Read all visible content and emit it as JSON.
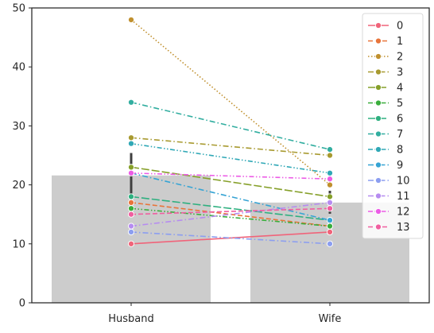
{
  "chart_data": {
    "type": "line",
    "title": "",
    "xlabel": "",
    "ylabel": "",
    "categories": [
      "Husband",
      "Wife"
    ],
    "ylim": [
      0,
      50
    ],
    "yticks": [
      0,
      10,
      20,
      30,
      40,
      50
    ],
    "grid": false,
    "legend_position": "top-right",
    "bars": {
      "color": "#cccccc",
      "errorbar_color": "#3f3f3f",
      "values": [
        21.6,
        17.0
      ],
      "ci": [
        [
          18.1,
          25.4
        ],
        [
          15.1,
          19.0
        ]
      ]
    },
    "series": [
      {
        "name": "0",
        "values": [
          10,
          12
        ],
        "color": "#f0647a",
        "dash": "solid"
      },
      {
        "name": "1",
        "values": [
          17,
          13
        ],
        "color": "#e8743a",
        "dash": "dash"
      },
      {
        "name": "2",
        "values": [
          48,
          20
        ],
        "color": "#c0902e",
        "dash": "dot"
      },
      {
        "name": "3",
        "values": [
          28,
          25
        ],
        "color": "#a89a30",
        "dash": "dashdot"
      },
      {
        "name": "4",
        "values": [
          23,
          18
        ],
        "color": "#86a02a",
        "dash": "longdash"
      },
      {
        "name": "5",
        "values": [
          16,
          13
        ],
        "color": "#3aae3c",
        "dash": "dashdotdot"
      },
      {
        "name": "6",
        "values": [
          18,
          14
        ],
        "color": "#2fb080",
        "dash": "longdash"
      },
      {
        "name": "7",
        "values": [
          34,
          26
        ],
        "color": "#32aea0",
        "dash": "dashdot"
      },
      {
        "name": "8",
        "values": [
          27,
          22
        ],
        "color": "#30a8b6",
        "dash": "dashdotdot"
      },
      {
        "name": "9",
        "values": [
          22,
          14
        ],
        "color": "#36a4d4",
        "dash": "dashdot"
      },
      {
        "name": "10",
        "values": [
          12,
          10
        ],
        "color": "#8c9ef0",
        "dash": "dashdot"
      },
      {
        "name": "11",
        "values": [
          13,
          17
        ],
        "color": "#b68cf0",
        "dash": "dashdot"
      },
      {
        "name": "12",
        "values": [
          22,
          21
        ],
        "color": "#ec5ce6",
        "dash": "dashdotdot"
      },
      {
        "name": "13",
        "values": [
          15,
          16
        ],
        "color": "#f05fa0",
        "dash": "dash"
      }
    ]
  }
}
